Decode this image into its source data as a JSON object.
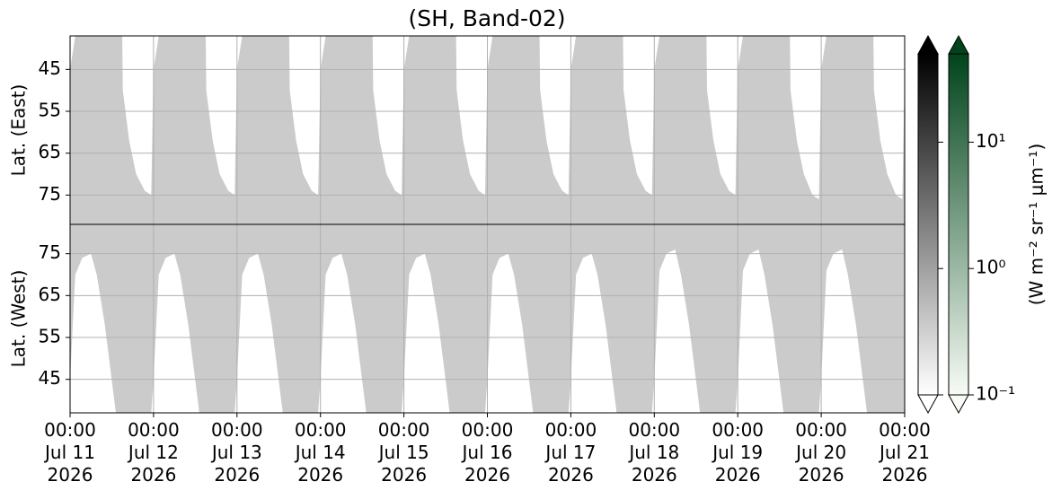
{
  "chart_data": {
    "type": "area",
    "title": "(SH, Band-02)",
    "xlim": [
      "2026-07-11T00:00",
      "2026-07-21T00:00"
    ],
    "xticks": [
      {
        "value": "2026-07-11T00:00",
        "label": "00:00\nJul 11\n2026"
      },
      {
        "value": "2026-07-12T00:00",
        "label": "00:00\nJul 12\n2026"
      },
      {
        "value": "2026-07-13T00:00",
        "label": "00:00\nJul 13\n2026"
      },
      {
        "value": "2026-07-14T00:00",
        "label": "00:00\nJul 14\n2026"
      },
      {
        "value": "2026-07-15T00:00",
        "label": "00:00\nJul 15\n2026"
      },
      {
        "value": "2026-07-16T00:00",
        "label": "00:00\nJul 16\n2026"
      },
      {
        "value": "2026-07-17T00:00",
        "label": "00:00\nJul 17\n2026"
      },
      {
        "value": "2026-07-18T00:00",
        "label": "00:00\nJul 18\n2026"
      },
      {
        "value": "2026-07-19T00:00",
        "label": "00:00\nJul 19\n2026"
      },
      {
        "value": "2026-07-20T00:00",
        "label": "00:00\nJul 20\n2026"
      },
      {
        "value": "2026-07-21T00:00",
        "label": "00:00\nJul 21\n2026"
      }
    ],
    "grid": true,
    "fill_color": "#cbcbcb",
    "panels": [
      {
        "ylabel": "Lat. (East)",
        "ylim": [
          37,
          82
        ],
        "y_inverted": true,
        "yticks": [
          45,
          55,
          65,
          75
        ],
        "x": [
          "2026-07-11T00:00",
          "2026-07-11T01:30",
          "2026-07-11T15:00",
          "2026-07-11T15:10",
          "2026-07-11T17:00",
          "2026-07-11T19:00",
          "2026-07-11T21:30",
          "2026-07-11T23:20",
          "2026-07-12T00:00",
          "2026-07-12T01:30",
          "2026-07-12T15:00",
          "2026-07-12T15:10",
          "2026-07-12T17:00",
          "2026-07-12T19:00",
          "2026-07-12T21:30",
          "2026-07-12T23:20",
          "2026-07-13T00:00",
          "2026-07-13T01:30",
          "2026-07-13T15:00",
          "2026-07-13T15:10",
          "2026-07-13T17:00",
          "2026-07-13T19:00",
          "2026-07-13T21:30",
          "2026-07-13T23:20",
          "2026-07-14T00:00",
          "2026-07-14T01:30",
          "2026-07-14T15:00",
          "2026-07-14T15:10",
          "2026-07-14T17:00",
          "2026-07-14T19:00",
          "2026-07-14T21:30",
          "2026-07-14T23:20",
          "2026-07-15T00:00",
          "2026-07-15T01:30",
          "2026-07-15T15:00",
          "2026-07-15T15:10",
          "2026-07-15T17:00",
          "2026-07-15T19:00",
          "2026-07-15T21:30",
          "2026-07-15T23:20",
          "2026-07-16T00:00",
          "2026-07-16T01:30",
          "2026-07-16T15:00",
          "2026-07-16T15:10",
          "2026-07-16T17:00",
          "2026-07-16T19:00",
          "2026-07-16T21:30",
          "2026-07-16T23:20",
          "2026-07-17T00:00",
          "2026-07-17T01:30",
          "2026-07-17T15:00",
          "2026-07-17T15:10",
          "2026-07-17T17:00",
          "2026-07-17T19:00",
          "2026-07-17T21:30",
          "2026-07-17T23:20",
          "2026-07-18T00:00",
          "2026-07-18T01:30",
          "2026-07-18T15:00",
          "2026-07-18T15:10",
          "2026-07-18T17:00",
          "2026-07-18T19:00",
          "2026-07-18T21:30",
          "2026-07-18T23:20",
          "2026-07-19T00:00",
          "2026-07-19T01:30",
          "2026-07-19T15:00",
          "2026-07-19T15:10",
          "2026-07-19T17:00",
          "2026-07-19T19:00",
          "2026-07-19T21:30",
          "2026-07-19T23:20",
          "2026-07-20T00:00",
          "2026-07-20T01:30",
          "2026-07-20T15:00",
          "2026-07-20T15:10",
          "2026-07-20T17:00",
          "2026-07-20T19:00",
          "2026-07-20T21:30",
          "2026-07-20T23:20",
          "2026-07-21T00:00"
        ],
        "values": [
          45,
          37,
          37,
          50,
          62,
          70,
          74,
          75,
          45,
          37,
          37,
          50,
          62,
          70,
          74,
          75,
          45,
          37,
          37,
          50,
          62,
          70,
          74,
          75,
          45,
          37,
          37,
          50,
          62,
          70,
          74,
          75,
          45,
          37,
          37,
          50,
          62,
          70,
          74,
          75,
          45,
          37,
          37,
          50,
          62,
          70,
          74,
          75,
          45,
          37,
          37,
          50,
          62,
          70,
          74,
          75,
          45,
          37,
          37,
          50,
          62,
          70,
          74,
          75,
          45,
          37,
          37,
          50,
          62,
          70,
          75,
          76,
          45,
          37,
          37,
          50,
          62,
          70,
          75,
          76,
          45
        ]
      },
      {
        "ylabel": "Lat. (West)",
        "ylim": [
          37,
          82
        ],
        "y_inverted": false,
        "yticks": [
          45,
          55,
          65,
          75
        ],
        "x": [
          "2026-07-11T00:00",
          "2026-07-11T01:30",
          "2026-07-11T03:30",
          "2026-07-11T06:00",
          "2026-07-11T07:40",
          "2026-07-11T10:00",
          "2026-07-11T13:10",
          "2026-07-11T23:20",
          "2026-07-12T00:00",
          "2026-07-12T01:30",
          "2026-07-12T03:30",
          "2026-07-12T06:00",
          "2026-07-12T07:40",
          "2026-07-12T10:00",
          "2026-07-12T13:10",
          "2026-07-12T23:20",
          "2026-07-13T00:00",
          "2026-07-13T01:30",
          "2026-07-13T03:30",
          "2026-07-13T06:00",
          "2026-07-13T07:40",
          "2026-07-13T10:00",
          "2026-07-13T13:10",
          "2026-07-13T23:20",
          "2026-07-14T00:00",
          "2026-07-14T01:30",
          "2026-07-14T03:30",
          "2026-07-14T06:00",
          "2026-07-14T07:40",
          "2026-07-14T10:00",
          "2026-07-14T13:10",
          "2026-07-14T23:20",
          "2026-07-15T00:00",
          "2026-07-15T01:30",
          "2026-07-15T03:30",
          "2026-07-15T06:00",
          "2026-07-15T07:40",
          "2026-07-15T10:00",
          "2026-07-15T13:10",
          "2026-07-15T23:20",
          "2026-07-16T00:00",
          "2026-07-16T01:30",
          "2026-07-16T03:30",
          "2026-07-16T06:00",
          "2026-07-16T07:40",
          "2026-07-16T10:00",
          "2026-07-16T13:10",
          "2026-07-16T23:20",
          "2026-07-17T00:00",
          "2026-07-17T01:30",
          "2026-07-17T03:30",
          "2026-07-17T06:00",
          "2026-07-17T07:40",
          "2026-07-17T10:00",
          "2026-07-17T13:10",
          "2026-07-17T23:20",
          "2026-07-18T00:00",
          "2026-07-18T01:30",
          "2026-07-18T03:30",
          "2026-07-18T06:00",
          "2026-07-18T07:40",
          "2026-07-18T10:00",
          "2026-07-18T13:10",
          "2026-07-18T23:20",
          "2026-07-19T00:00",
          "2026-07-19T01:30",
          "2026-07-19T03:30",
          "2026-07-19T06:00",
          "2026-07-19T07:40",
          "2026-07-19T10:00",
          "2026-07-19T13:10",
          "2026-07-19T23:20",
          "2026-07-20T00:00",
          "2026-07-20T01:30",
          "2026-07-20T03:30",
          "2026-07-20T06:00",
          "2026-07-20T07:40",
          "2026-07-20T10:00",
          "2026-07-20T13:10",
          "2026-07-20T23:20",
          "2026-07-21T00:00"
        ],
        "values": [
          45,
          70,
          74,
          75,
          70,
          58,
          37,
          37,
          45,
          70,
          74,
          75,
          70,
          58,
          37,
          37,
          45,
          70,
          74,
          75,
          70,
          58,
          37,
          37,
          45,
          70,
          74,
          75,
          70,
          58,
          37,
          37,
          45,
          70,
          74,
          75,
          70,
          58,
          37,
          37,
          45,
          70,
          74,
          75,
          70,
          58,
          37,
          37,
          45,
          70,
          74,
          75,
          70,
          58,
          37,
          37,
          45,
          71,
          75,
          76,
          70,
          58,
          37,
          37,
          45,
          71,
          75,
          76,
          70,
          58,
          37,
          37,
          45,
          71,
          75,
          76,
          70,
          58,
          37,
          37,
          37
        ]
      }
    ],
    "colorbar_label": "(W m⁻² sr⁻¹ μm⁻¹)",
    "colorbars": [
      {
        "cmap": [
          "#ffffff",
          "#000000"
        ],
        "log": true,
        "extend": "both",
        "ylim": [
          0.1,
          50
        ],
        "yticks": [
          0.1,
          1,
          10
        ],
        "show_tick_labels": false
      },
      {
        "cmap": [
          "#f7fcf5",
          "#00441b"
        ],
        "log": true,
        "extend": "both",
        "ylim": [
          0.1,
          50
        ],
        "yticks": [
          {
            "value": 0.1,
            "label": "10⁻¹"
          },
          {
            "value": 1,
            "label": "10⁰"
          },
          {
            "value": 10,
            "label": "10¹"
          }
        ],
        "show_tick_labels": true
      }
    ]
  }
}
